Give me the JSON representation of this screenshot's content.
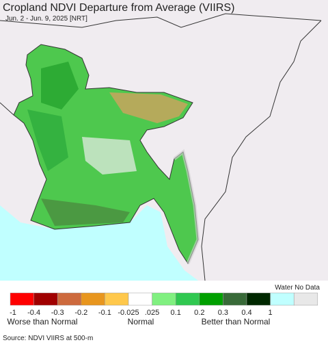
{
  "header": {
    "title": "Cropland NDVI Departure from Average (VIIRS)",
    "subtitle": "Jun. 2 - Jun. 9, 2025 [NRT]"
  },
  "legend": {
    "water_no_data": "Water No Data",
    "colors": [
      "#ff0000",
      "#a00000",
      "#cd6a3d",
      "#e8961e",
      "#ffc84b",
      "#ffffff",
      "#80f080",
      "#30c850",
      "#00a000",
      "#386a38",
      "#002800",
      "#c0ffff",
      "#e8e8e8"
    ],
    "ticks": [
      "-1",
      "-0.4",
      "-0.3",
      "-0.2",
      "-0.1",
      "-0.025",
      ".025",
      "0.1",
      "0.2",
      "0.3",
      "0.4",
      "1"
    ],
    "groups": [
      "Worse than Normal",
      "Normal",
      "Better than Normal"
    ]
  },
  "footer": {
    "source": "Source: NDVI VIIRS at 500-m"
  }
}
